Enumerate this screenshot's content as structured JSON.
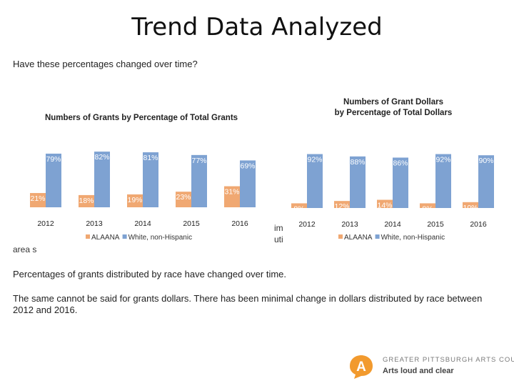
{
  "slide": {
    "title": "Trend Data Analyzed",
    "subtitle": "Have these percentages changed over time?",
    "fragments": {
      "left_area": "area s",
      "mid_a": "im",
      "mid_b": "uti"
    },
    "bottom_text_1": "Percentages of grants distributed by race have changed over time.",
    "bottom_text_2": "The same cannot be said for grants dollars.  There has been minimal change in dollars distributed by race between 2012 and 2016."
  },
  "colors": {
    "alaana": "#F0A872",
    "white": "#7EA2D2",
    "logo": "#F29A2E"
  },
  "logo": {
    "top_text": "GREATER PITTSBURGH ARTS COUNCIL",
    "bottom_text": "Arts loud and clear",
    "mark": "A"
  },
  "chart_data": [
    {
      "type": "bar",
      "title": "Numbers of Grants by Percentage of Total Grants",
      "categories": [
        "2012",
        "2013",
        "2014",
        "2015",
        "2016"
      ],
      "series": [
        {
          "name": "ALAANA",
          "values": [
            21,
            18,
            19,
            23,
            31
          ],
          "labels": [
            "21%",
            "18%",
            "19%",
            "23%",
            "31%"
          ]
        },
        {
          "name": "White, non-Hispanic",
          "values": [
            79,
            82,
            81,
            77,
            69
          ],
          "labels": [
            "79%",
            "82%",
            "81%",
            "77%",
            "69%"
          ]
        }
      ],
      "ylim": [
        0,
        100
      ],
      "legend_position": "bottom"
    },
    {
      "type": "bar",
      "title": "Numbers of Grant Dollars by Percentage of Total Dollars",
      "categories": [
        "2012",
        "2013",
        "2014",
        "2015",
        "2016"
      ],
      "series": [
        {
          "name": "ALAANA",
          "values": [
            8,
            12,
            14,
            8,
            10
          ],
          "labels": [
            "8%",
            "12%",
            "14%",
            "8%",
            "10%"
          ]
        },
        {
          "name": "White, non-Hispanic",
          "values": [
            92,
            88,
            86,
            92,
            90
          ],
          "labels": [
            "92%",
            "88%",
            "86%",
            "92%",
            "90%"
          ]
        }
      ],
      "ylim": [
        0,
        100
      ],
      "legend_position": "bottom"
    }
  ]
}
